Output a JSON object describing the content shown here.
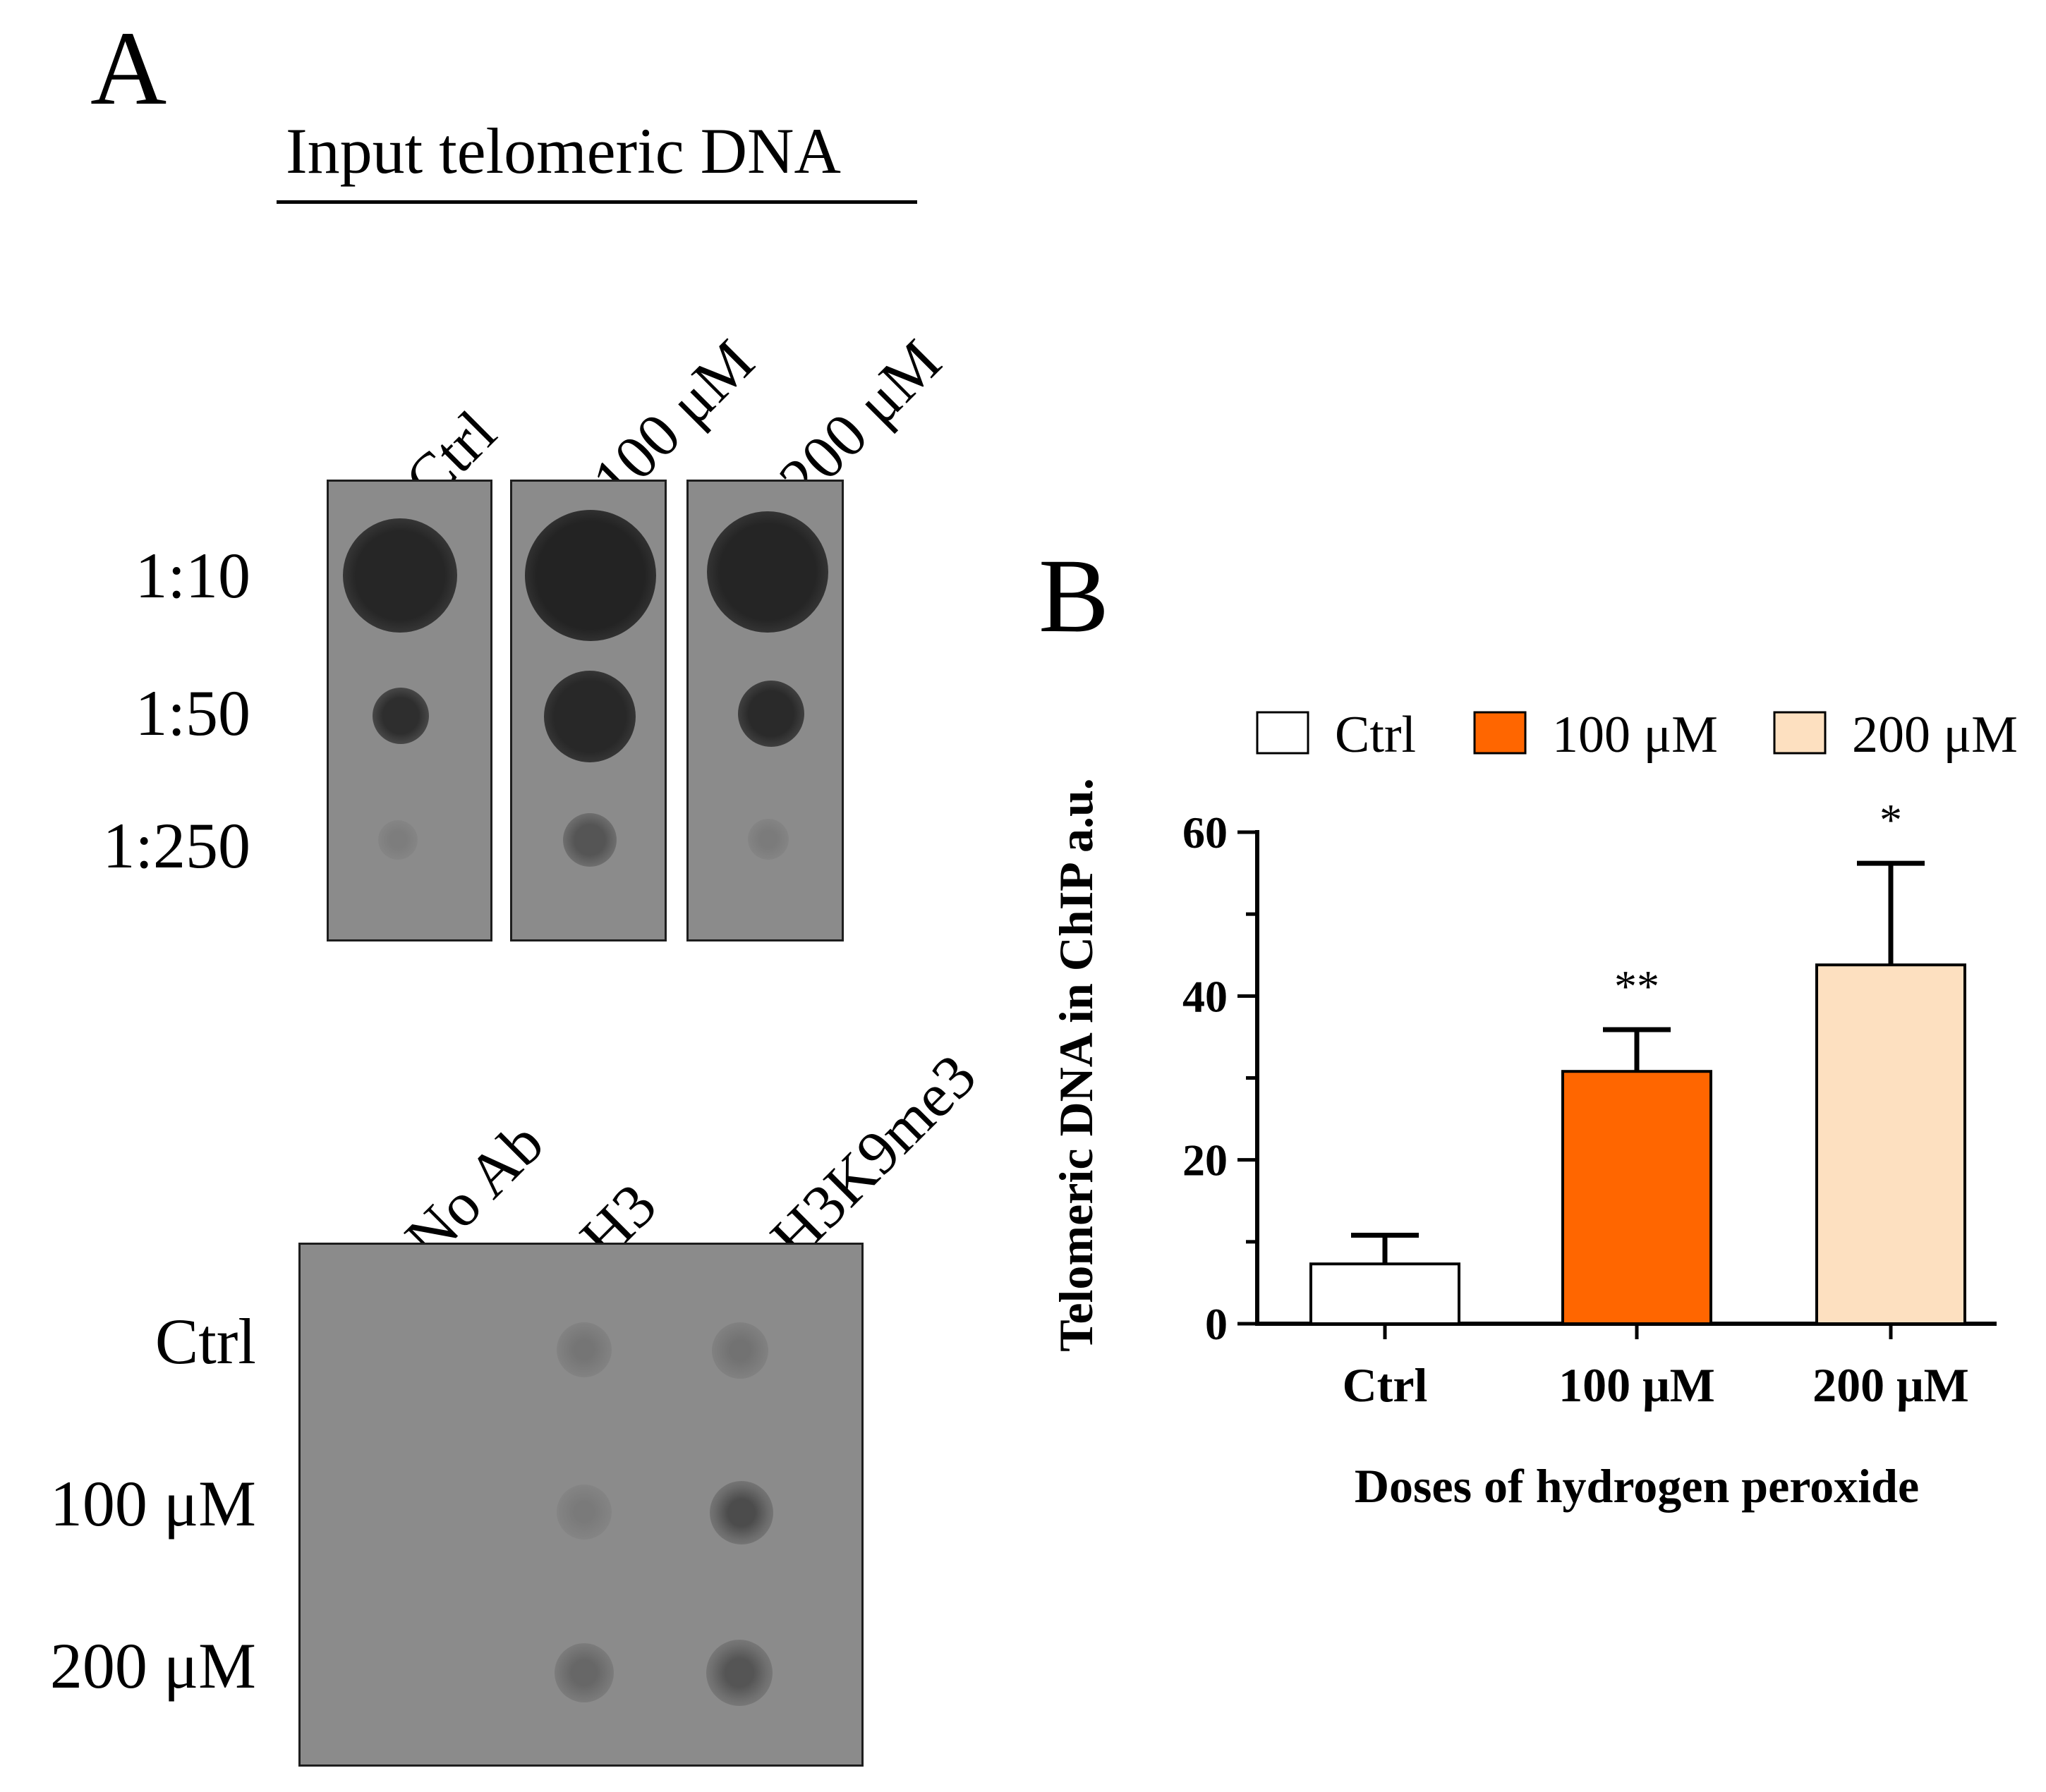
{
  "panel_a": {
    "letter": "A",
    "input_header": "Input telomeric DNA",
    "input_columns": [
      "Ctrl",
      "100 μM",
      "200 μM"
    ],
    "input_rows": [
      "1:10",
      "1:50",
      "1:250"
    ],
    "chip_columns": [
      "No Ab",
      "H3",
      "H3K9me3"
    ],
    "chip_rows": [
      "Ctrl",
      "100 μM",
      "200 μM"
    ]
  },
  "panel_b": {
    "letter": "B"
  },
  "chart_data": {
    "type": "bar",
    "categories": [
      "Ctrl",
      "100 μM",
      "200 μM"
    ],
    "values": [
      7.3,
      30.8,
      43.8
    ],
    "errors": [
      3.5,
      5.1,
      12.4
    ],
    "significance": [
      "",
      "**",
      "*"
    ],
    "colors": [
      "#ffffff",
      "#ff6600",
      "#fde0c0"
    ],
    "legend": [
      "Ctrl",
      "100 μM",
      "200 μM"
    ],
    "legend_position": "top",
    "xlabel": "Doses of hydrogen peroxide",
    "ylabel": "Telomeric DNA in ChIP a.u.",
    "ylim": [
      0,
      60
    ],
    "yticks": [
      0,
      20,
      40,
      60
    ]
  }
}
